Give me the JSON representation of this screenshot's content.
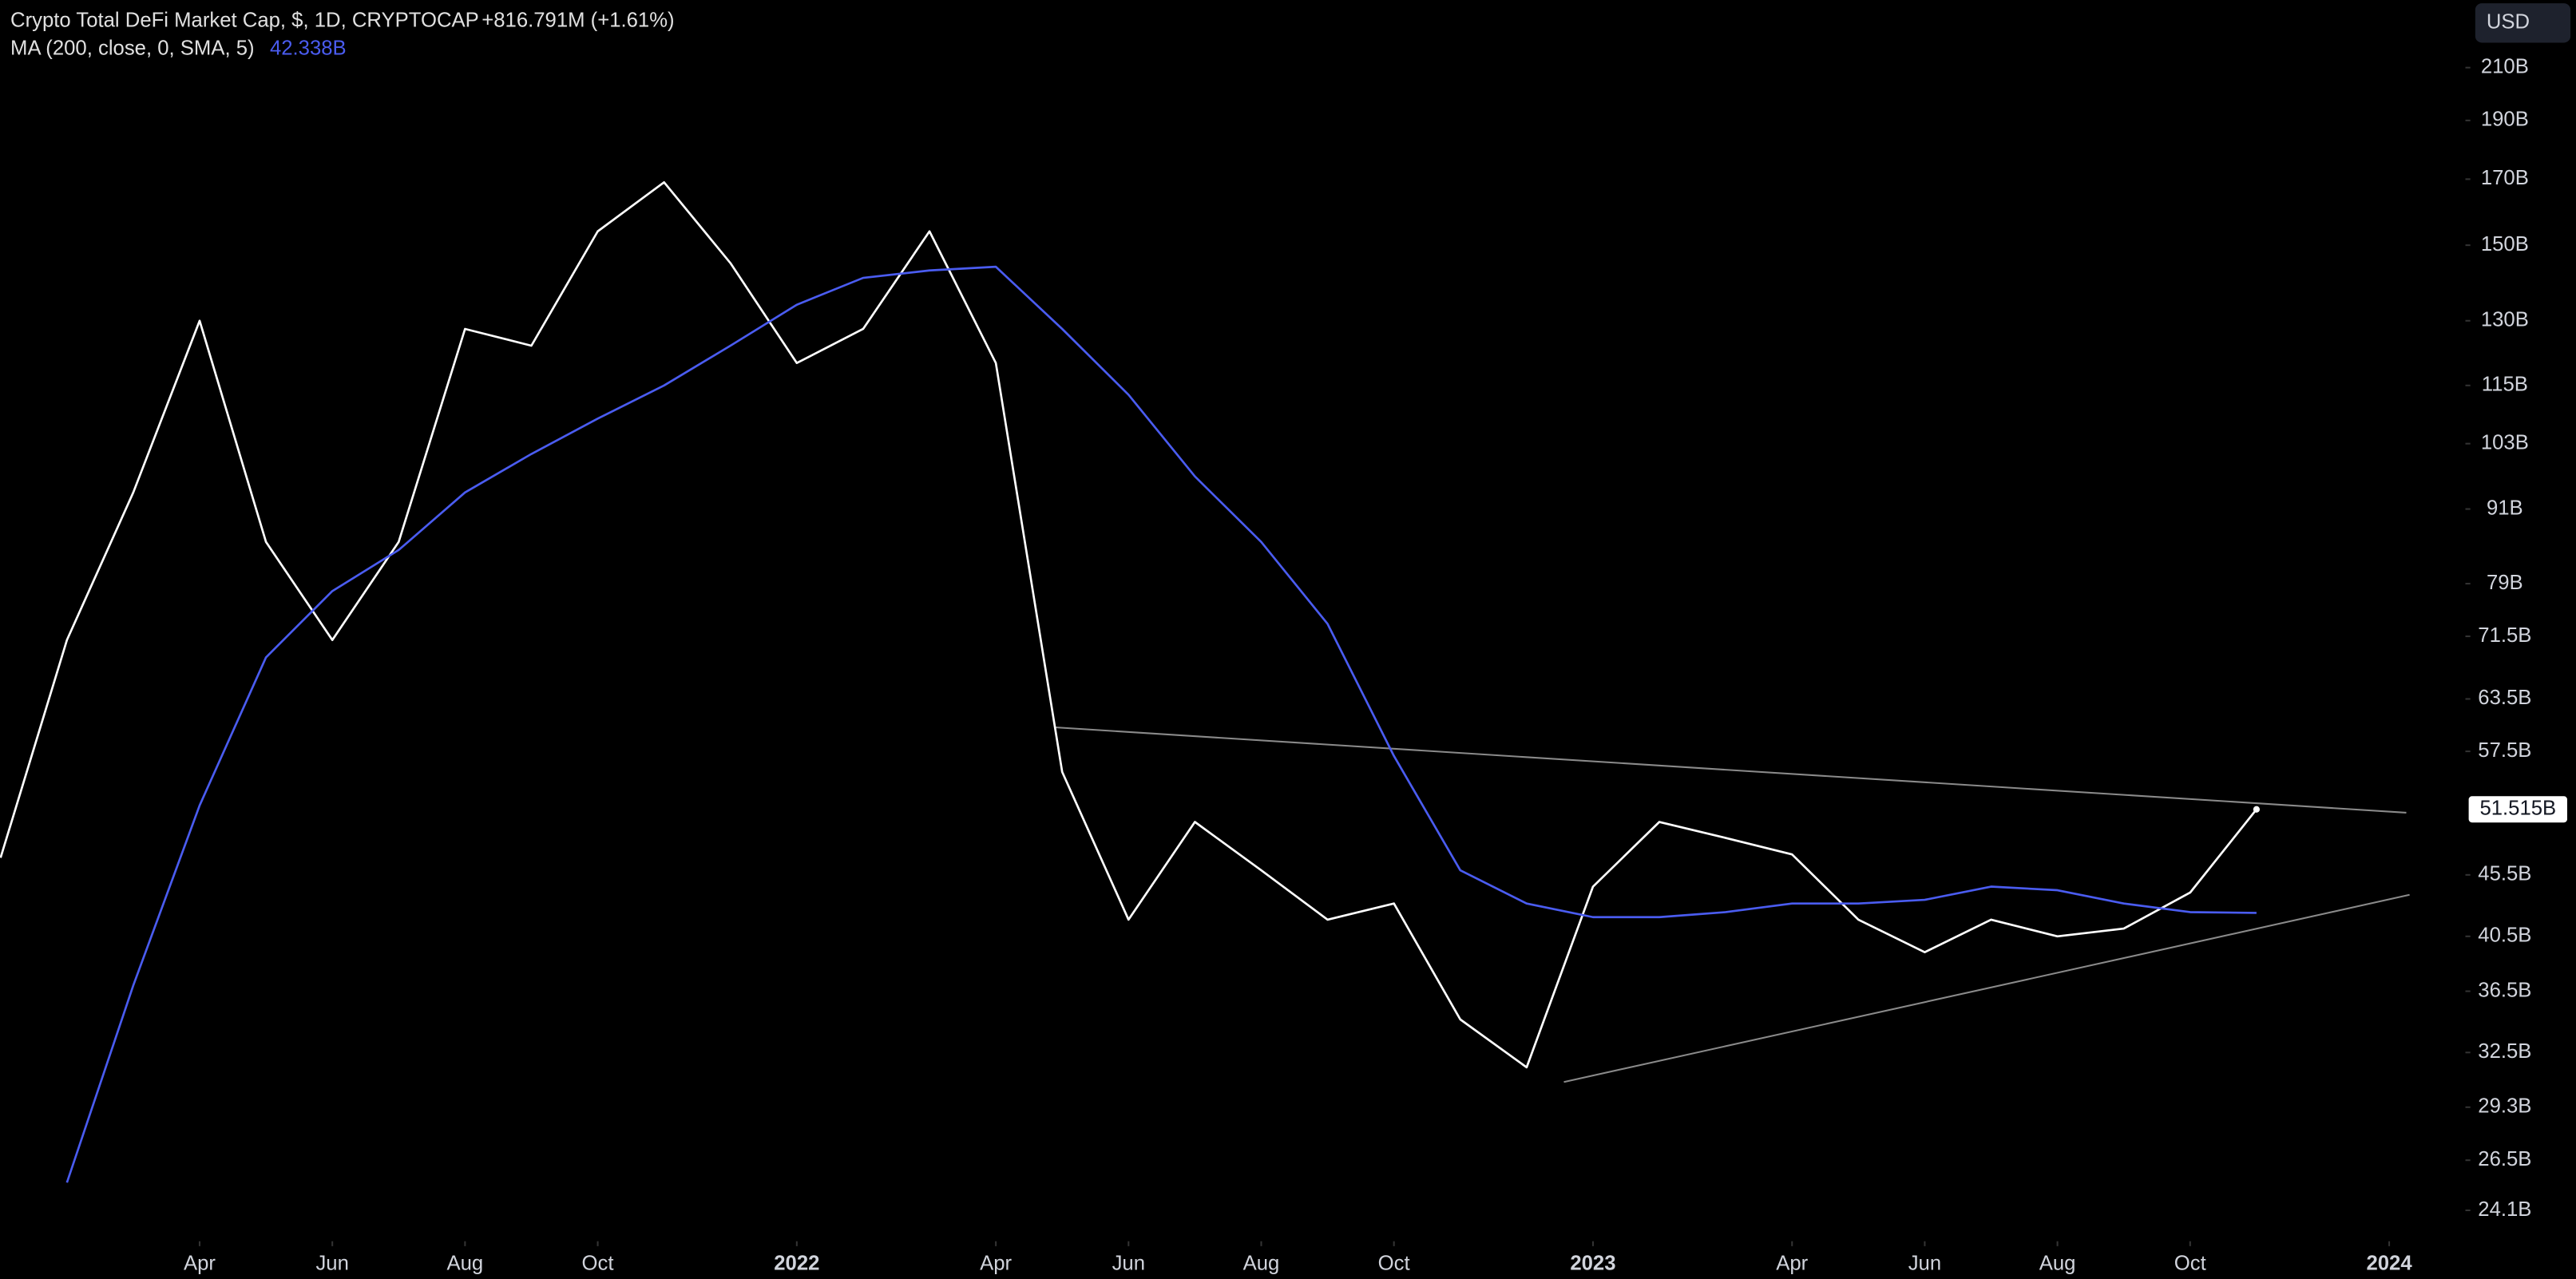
{
  "chart_data": {
    "type": "line",
    "yscale": "log",
    "grid": false,
    "currency": "USD",
    "change_label": "+816.791M (+1.61%)",
    "x": [
      "2021-01",
      "2021-02",
      "2021-03",
      "2021-04",
      "2021-05",
      "2021-06",
      "2021-07",
      "2021-08",
      "2021-09",
      "2021-10",
      "2021-11",
      "2021-12",
      "2022-01",
      "2022-02",
      "2022-03",
      "2022-04",
      "2022-05",
      "2022-06",
      "2022-07",
      "2022-08",
      "2022-09",
      "2022-10",
      "2022-11",
      "2022-12",
      "2023-01",
      "2023-02",
      "2023-03",
      "2023-04",
      "2023-05",
      "2023-06",
      "2023-07",
      "2023-08",
      "2023-09",
      "2023-10",
      "2023-11"
    ],
    "xlim": [
      "2021-01",
      "2024-02"
    ],
    "xticks": [
      {
        "value": "2021-04",
        "label": "Apr"
      },
      {
        "value": "2021-06",
        "label": "Jun"
      },
      {
        "value": "2021-08",
        "label": "Aug"
      },
      {
        "value": "2021-10",
        "label": "Oct"
      },
      {
        "value": "2022-01",
        "label": "2022"
      },
      {
        "value": "2022-04",
        "label": "Apr"
      },
      {
        "value": "2022-06",
        "label": "Jun"
      },
      {
        "value": "2022-08",
        "label": "Aug"
      },
      {
        "value": "2022-10",
        "label": "Oct"
      },
      {
        "value": "2023-01",
        "label": "2023"
      },
      {
        "value": "2023-04",
        "label": "Apr"
      },
      {
        "value": "2023-06",
        "label": "Jun"
      },
      {
        "value": "2023-08",
        "label": "Aug"
      },
      {
        "value": "2023-10",
        "label": "Oct"
      },
      {
        "value": "2024-01",
        "label": "2024"
      }
    ],
    "ylim": [
      22800000000.0,
      238700000000.0
    ],
    "yticks": [
      {
        "value": 210000000000.0,
        "label": "210B"
      },
      {
        "value": 190000000000.0,
        "label": "190B"
      },
      {
        "value": 170000000000.0,
        "label": "170B"
      },
      {
        "value": 150000000000.0,
        "label": "150B"
      },
      {
        "value": 130000000000.0,
        "label": "130B"
      },
      {
        "value": 115000000000.0,
        "label": "115B"
      },
      {
        "value": 103000000000.0,
        "label": "103B"
      },
      {
        "value": 91000000000.0,
        "label": "91B"
      },
      {
        "value": 79000000000.0,
        "label": "79B"
      },
      {
        "value": 71500000000.0,
        "label": "71.5B"
      },
      {
        "value": 63500000000.0,
        "label": "63.5B"
      },
      {
        "value": 57500000000.0,
        "label": "57.5B"
      },
      {
        "value": 45500000000.0,
        "label": "45.5B"
      },
      {
        "value": 40500000000.0,
        "label": "40.5B"
      },
      {
        "value": 36500000000.0,
        "label": "36.5B"
      },
      {
        "value": 32500000000.0,
        "label": "32.5B"
      },
      {
        "value": 29300000000.0,
        "label": "29.3B"
      },
      {
        "value": 26500000000.0,
        "label": "26.5B"
      },
      {
        "value": 24100000000.0,
        "label": "24.1B"
      }
    ],
    "series": [
      {
        "name": "Crypto Total DeFi Market Cap, $, 1D, CRYPTOCAP",
        "color": "#ffffff",
        "last_label": "51.515B",
        "values": [
          47000000000.0,
          71000000000.0,
          93900000000.0,
          130000000000.0,
          85500000000.0,
          71000000000.0,
          85500000000.0,
          128000000000.0,
          124000000000.0,
          154000000000.0,
          169000000000.0,
          145000000000.0,
          120000000000.0,
          128000000000.0,
          154000000000.0,
          120000000000.0,
          55300000000.0,
          41800000000.0,
          50300000000.0,
          45900000000.0,
          41800000000.0,
          43100000000.0,
          34600000000.0,
          31600000000.0,
          44500000000.0,
          50300000000.0,
          48800000000.0,
          47300000000.0,
          41800000000.0,
          39300000000.0,
          41800000000.0,
          40500000000.0,
          41100000000.0,
          44000000000.0,
          51515000000.0
        ]
      },
      {
        "name": "MA (200, close, 0, SMA, 5)",
        "color": "#4a5cf0",
        "last_label": "42.338B",
        "values": [
          null,
          25400000000.0,
          36900000000.0,
          51900000000.0,
          68700000000.0,
          77900000000.0,
          84200000000.0,
          93900000000.0,
          101000000000.0,
          108000000000.0,
          115000000000.0,
          124000000000.0,
          134000000000.0,
          141000000000.0,
          143000000000.0,
          144000000000.0,
          128000000000.0,
          113000000000.0,
          96800000000.0,
          85500000000.0,
          73200000000.0,
          57000000000.0,
          45900000000.0,
          43100000000.0,
          42000000000.0,
          42000000000.0,
          42400000000.0,
          43100000000.0,
          43100000000.0,
          43400000000.0,
          44500000000.0,
          44200000000.0,
          43100000000.0,
          42400000000.0,
          42338000000.0
        ]
      }
    ]
  }
}
